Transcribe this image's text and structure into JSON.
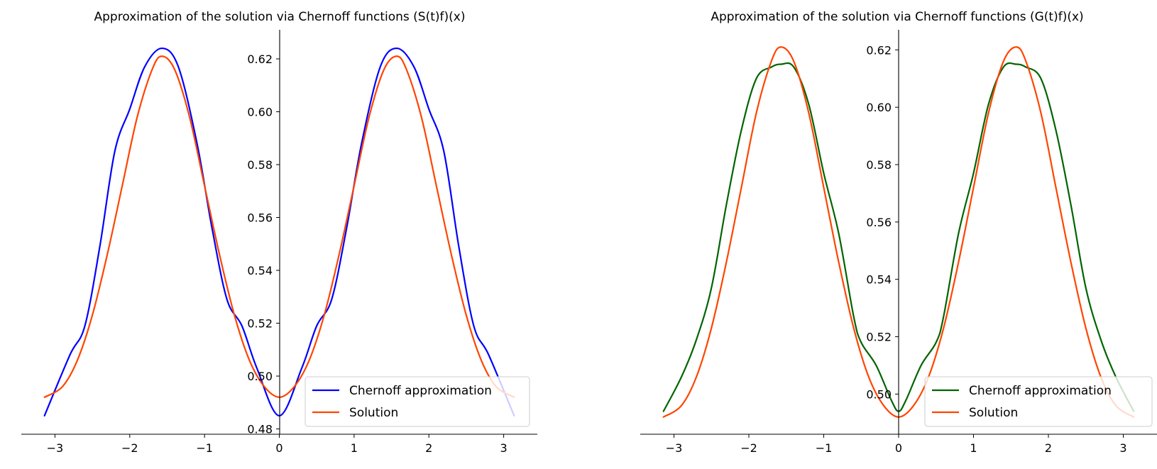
{
  "chart_data": [
    {
      "type": "line",
      "title": "Approximation of the solution via Chernoff functions (S(t)f)(x)",
      "xlabel": "",
      "ylabel": "",
      "xlim": [
        -3.45,
        3.45
      ],
      "ylim": [
        0.478,
        0.631
      ],
      "grid": false,
      "legend_position": "lower-right",
      "x_ticks": [
        -3,
        -2,
        -1,
        0,
        1,
        2,
        3
      ],
      "x_tick_labels": [
        "−3",
        "−2",
        "−1",
        "0",
        "1",
        "2",
        "3"
      ],
      "y_ticks": [
        0.48,
        0.5,
        0.52,
        0.54,
        0.56,
        0.58,
        0.6,
        0.62
      ],
      "y_tick_labels": [
        "0.48",
        "0.50",
        "0.52",
        "0.54",
        "0.56",
        "0.58",
        "0.60",
        "0.62"
      ],
      "series": [
        {
          "name": "Chernoff approximation",
          "color": "#0000ff",
          "x": [
            -3.14,
            -2.8,
            -2.6,
            -2.4,
            -2.2,
            -2.0,
            -1.8,
            -1.571,
            -1.35,
            -1.1,
            -0.9,
            -0.7,
            -0.5,
            -0.3,
            0.0,
            0.3,
            0.5,
            0.7,
            0.9,
            1.1,
            1.35,
            1.571,
            1.8,
            2.0,
            2.2,
            2.4,
            2.6,
            2.8,
            3.14
          ],
          "y": [
            0.485,
            0.508,
            0.519,
            0.549,
            0.585,
            0.601,
            0.617,
            0.624,
            0.617,
            0.588,
            0.556,
            0.529,
            0.519,
            0.503,
            0.485,
            0.503,
            0.519,
            0.529,
            0.556,
            0.588,
            0.617,
            0.624,
            0.617,
            0.601,
            0.585,
            0.549,
            0.519,
            0.508,
            0.485
          ]
        },
        {
          "name": "Solution",
          "color": "#ff4500",
          "x": [
            -3.14,
            -2.9,
            -2.7,
            -2.5,
            -2.3,
            -2.1,
            -1.9,
            -1.7,
            -1.571,
            -1.4,
            -1.2,
            -1.0,
            -0.8,
            -0.6,
            -0.4,
            -0.2,
            0.0,
            0.2,
            0.4,
            0.6,
            0.8,
            1.0,
            1.2,
            1.4,
            1.571,
            1.7,
            1.9,
            2.1,
            2.3,
            2.5,
            2.7,
            2.9,
            3.14
          ],
          "y": [
            0.492,
            0.496,
            0.506,
            0.523,
            0.546,
            0.572,
            0.598,
            0.616,
            0.621,
            0.616,
            0.598,
            0.572,
            0.546,
            0.523,
            0.506,
            0.496,
            0.492,
            0.496,
            0.506,
            0.523,
            0.546,
            0.572,
            0.598,
            0.616,
            0.621,
            0.616,
            0.598,
            0.572,
            0.546,
            0.523,
            0.506,
            0.496,
            0.492
          ]
        }
      ]
    },
    {
      "type": "line",
      "title": "Approximation of the solution via Chernoff functions (G(t)f)(x)",
      "xlabel": "",
      "ylabel": "",
      "xlim": [
        -3.45,
        3.45
      ],
      "ylim": [
        0.486,
        0.627
      ],
      "grid": false,
      "legend_position": "lower-right",
      "x_ticks": [
        -3,
        -2,
        -1,
        0,
        1,
        2,
        3
      ],
      "x_tick_labels": [
        "−3",
        "−2",
        "−1",
        "0",
        "1",
        "2",
        "3"
      ],
      "y_ticks": [
        0.5,
        0.52,
        0.54,
        0.56,
        0.58,
        0.6,
        0.62
      ],
      "y_tick_labels": [
        "0.50",
        "0.52",
        "0.54",
        "0.56",
        "0.58",
        "0.60",
        "0.62"
      ],
      "series": [
        {
          "name": "Chernoff approximation",
          "color": "#006400",
          "x": [
            -3.14,
            -2.9,
            -2.7,
            -2.5,
            -2.3,
            -2.1,
            -1.9,
            -1.7,
            -1.571,
            -1.4,
            -1.2,
            -1.0,
            -0.8,
            -0.6,
            -0.5,
            -0.3,
            -0.1,
            0.0,
            0.1,
            0.3,
            0.5,
            0.6,
            0.8,
            1.0,
            1.2,
            1.4,
            1.571,
            1.7,
            1.9,
            2.1,
            2.3,
            2.5,
            2.7,
            2.9,
            3.14
          ],
          "y": [
            0.494,
            0.506,
            0.519,
            0.537,
            0.566,
            0.592,
            0.61,
            0.614,
            0.615,
            0.614,
            0.601,
            0.577,
            0.556,
            0.527,
            0.518,
            0.51,
            0.498,
            0.494,
            0.498,
            0.51,
            0.518,
            0.527,
            0.556,
            0.577,
            0.601,
            0.614,
            0.615,
            0.614,
            0.61,
            0.592,
            0.566,
            0.537,
            0.519,
            0.506,
            0.494
          ]
        },
        {
          "name": "Solution",
          "color": "#ff4500",
          "x": [
            -3.14,
            -2.9,
            -2.7,
            -2.5,
            -2.3,
            -2.1,
            -1.9,
            -1.7,
            -1.571,
            -1.4,
            -1.2,
            -1.0,
            -0.8,
            -0.6,
            -0.4,
            -0.2,
            0.0,
            0.2,
            0.4,
            0.6,
            0.8,
            1.0,
            1.2,
            1.4,
            1.571,
            1.7,
            1.9,
            2.1,
            2.3,
            2.5,
            2.7,
            2.9,
            3.14
          ],
          "y": [
            0.492,
            0.496,
            0.506,
            0.523,
            0.546,
            0.572,
            0.598,
            0.616,
            0.621,
            0.616,
            0.598,
            0.572,
            0.546,
            0.523,
            0.506,
            0.496,
            0.492,
            0.496,
            0.506,
            0.523,
            0.546,
            0.572,
            0.598,
            0.616,
            0.621,
            0.616,
            0.598,
            0.572,
            0.546,
            0.523,
            0.506,
            0.496,
            0.492
          ]
        }
      ]
    }
  ]
}
